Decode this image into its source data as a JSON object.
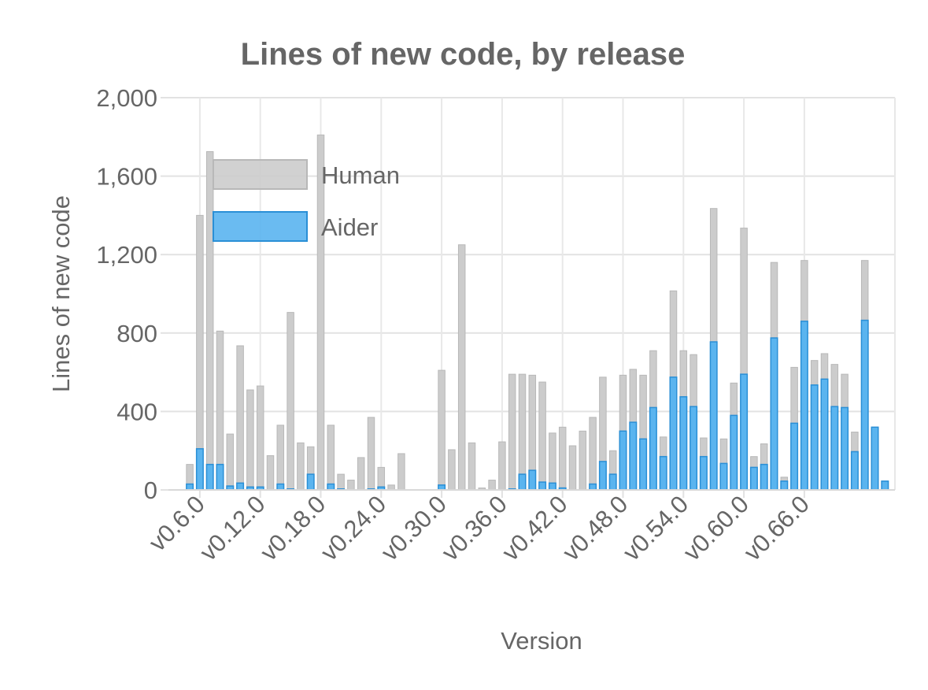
{
  "chart_data": {
    "type": "bar",
    "stacked": true,
    "title": "Lines of new code, by release",
    "xlabel": "Version",
    "ylabel": "Lines of new code",
    "ylim": [
      0,
      2000
    ],
    "yticks": [
      0,
      400,
      800,
      1200,
      1600,
      2000
    ],
    "ytick_labels": [
      "0",
      "400",
      "800",
      "1,200",
      "1,600",
      "2,000"
    ],
    "xtick_labels": [
      "v0.6.0",
      "v0.12.0",
      "v0.18.0",
      "v0.24.0",
      "v0.30.0",
      "v0.36.0",
      "v0.42.0",
      "v0.48.0",
      "v0.54.0",
      "v0.60.0",
      "v0.66.0"
    ],
    "grid": true,
    "legend_position": "top-left",
    "categories": [
      "v0.5.0",
      "v0.6.0",
      "v0.7.0",
      "v0.8.0",
      "v0.9.0",
      "v0.10.0",
      "v0.11.0",
      "v0.12.0",
      "v0.13.0",
      "v0.14.0",
      "v0.15.0",
      "v0.16.0",
      "v0.17.0",
      "v0.18.0",
      "v0.19.0",
      "v0.20.0",
      "v0.21.0",
      "v0.22.0",
      "v0.23.0",
      "v0.24.0",
      "v0.25.0",
      "v0.26.0",
      "v0.27.0",
      "v0.28.0",
      "v0.29.0",
      "v0.30.0",
      "v0.31.0",
      "v0.32.0",
      "v0.33.0",
      "v0.34.0",
      "v0.35.0",
      "v0.36.0",
      "v0.37.0",
      "v0.38.0",
      "v0.39.0",
      "v0.40.0",
      "v0.41.0",
      "v0.42.0",
      "v0.43.0",
      "v0.44.0",
      "v0.45.0",
      "v0.46.0",
      "v0.47.0",
      "v0.48.0",
      "v0.49.0",
      "v0.50.0",
      "v0.51.0",
      "v0.52.0",
      "v0.53.0",
      "v0.54.0",
      "v0.55.0",
      "v0.56.0",
      "v0.57.0",
      "v0.58.0",
      "v0.59.0",
      "v0.60.0",
      "v0.61.0",
      "v0.62.0",
      "v0.63.0",
      "v0.64.0",
      "v0.65.0",
      "v0.66.0",
      "v0.67.0",
      "v0.68.0",
      "v0.69.0",
      "v0.70.0",
      "v0.71.0",
      "v0.72.0",
      "v0.73.0",
      "v0.74.0",
      "v0.75.0",
      "v0.76.0",
      "v0.77.0",
      "v0.78.0"
    ],
    "series": [
      {
        "name": "Aider",
        "color": "#5ab4ef",
        "values": [
          30,
          210,
          130,
          130,
          20,
          35,
          15,
          15,
          0,
          30,
          5,
          0,
          80,
          0,
          30,
          5,
          0,
          0,
          5,
          15,
          0,
          0,
          0,
          0,
          0,
          25,
          0,
          0,
          0,
          0,
          0,
          0,
          5,
          80,
          100,
          40,
          35,
          10,
          0,
          0,
          30,
          145,
          80,
          300,
          345,
          260,
          420,
          170,
          575,
          475,
          425,
          170,
          755,
          135,
          380,
          590,
          115,
          130,
          775,
          45,
          340,
          860,
          535,
          565,
          425,
          420,
          195,
          865,
          320,
          45,
          0,
          0,
          0,
          0
        ]
      },
      {
        "name": "Human",
        "color": "#cccccc",
        "values": [
          100,
          1190,
          1595,
          680,
          265,
          700,
          495,
          515,
          175,
          300,
          900,
          240,
          140,
          1810,
          300,
          75,
          50,
          165,
          365,
          100,
          25,
          185,
          0,
          0,
          0,
          585,
          205,
          1250,
          240,
          10,
          50,
          245,
          585,
          510,
          485,
          510,
          255,
          310,
          225,
          300,
          340,
          430,
          120,
          285,
          270,
          325,
          290,
          100,
          440,
          235,
          265,
          95,
          680,
          125,
          165,
          745,
          55,
          105,
          385,
          20,
          285,
          310,
          125,
          130,
          215,
          170,
          100,
          305,
          0,
          0,
          0,
          0,
          0,
          0
        ]
      }
    ]
  }
}
